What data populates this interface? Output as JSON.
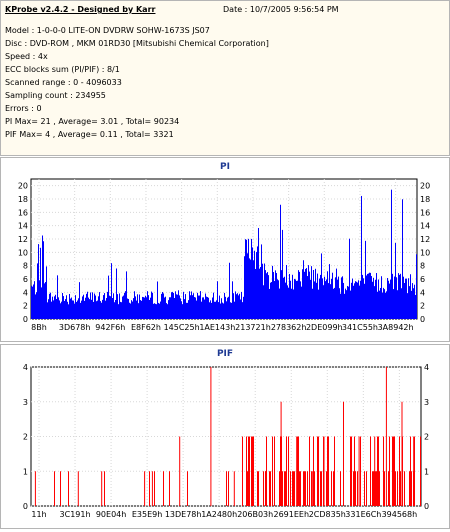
{
  "header": {
    "app_title": "KProbe v2.4.2 - Designed by Karr",
    "date": "Date : 10/7/2005 9:56:54 PM",
    "lines": [
      "Model : 1-0-0-0 LITE-ON DVDRW SOHW-1673S JS07",
      "Disc : DVD-ROM , MKM 01RD30  [Mitsubishi Chemical Corporation]",
      "Speed : 4x",
      "ECC blocks sum (PI/PIF) : 8/1",
      "Scanned range : 0 - 4096033",
      "Sampling count : 234955",
      "Errors : 0",
      "PI Max= 21 , Average= 3.01 , Total= 90234",
      "PIF Max= 4 , Average= 0.11 , Total= 3321"
    ]
  },
  "chart_data": [
    {
      "type": "area",
      "title": "PI",
      "color": "#0000ff",
      "ylim": [
        0,
        21
      ],
      "y_ticks": [
        0,
        2,
        4,
        6,
        8,
        10,
        12,
        14,
        16,
        18,
        20
      ],
      "x_tick_labels": [
        "8Bh",
        "3D678h",
        "942F6h",
        "E8F62h",
        "145C25h",
        "1AE143h",
        "213721h",
        "278362h",
        "2DE099h",
        "341C55h",
        "3A8942h"
      ],
      "segments": [
        {
          "from": 0.0,
          "to": 0.04,
          "base": 4.5,
          "spread": 2.5,
          "spike_max": 14.5
        },
        {
          "from": 0.04,
          "to": 0.55,
          "base": 3.0,
          "spread": 2.0,
          "spike_max": 9.0
        },
        {
          "from": 0.55,
          "to": 0.6,
          "base": 9.5,
          "spread": 5.0,
          "spike_max": 20.0
        },
        {
          "from": 0.6,
          "to": 0.8,
          "base": 6.0,
          "spread": 4.0,
          "spike_max": 18.0
        },
        {
          "from": 0.8,
          "to": 1.0,
          "base": 5.0,
          "spread": 3.5,
          "spike_max": 20.5
        }
      ]
    },
    {
      "type": "bar",
      "title": "PIF",
      "color": "#ff0000",
      "ylim": [
        0,
        4
      ],
      "y_ticks": [
        0,
        1,
        2,
        3,
        4
      ],
      "x_tick_labels": [
        "11h",
        "3C191h",
        "90E04h",
        "E35E9h",
        "13DE78h",
        "1A2480h",
        "206B03h",
        "2691EEh",
        "2CD835h",
        "331E6Ch",
        "394568h"
      ],
      "sparse_section": {
        "from": 0.0,
        "to": 0.52,
        "density": 0.06,
        "spikes": [
          [
            0.01,
            1
          ],
          [
            0.12,
            1
          ],
          [
            0.18,
            1
          ],
          [
            0.29,
            1
          ],
          [
            0.31,
            1
          ],
          [
            0.38,
            2
          ],
          [
            0.4,
            1
          ],
          [
            0.46,
            4
          ],
          [
            0.5,
            1
          ],
          [
            0.52,
            1
          ]
        ]
      },
      "dense_section": {
        "from": 0.54,
        "to": 1.0,
        "density": 0.5,
        "max": 2,
        "spikes": [
          [
            0.6,
            1
          ],
          [
            0.64,
            3
          ],
          [
            0.68,
            2
          ],
          [
            0.72,
            1
          ],
          [
            0.75,
            2
          ],
          [
            0.8,
            3
          ],
          [
            0.84,
            2
          ],
          [
            0.88,
            2
          ],
          [
            0.91,
            4
          ],
          [
            0.95,
            3
          ],
          [
            0.98,
            2
          ]
        ]
      }
    }
  ]
}
